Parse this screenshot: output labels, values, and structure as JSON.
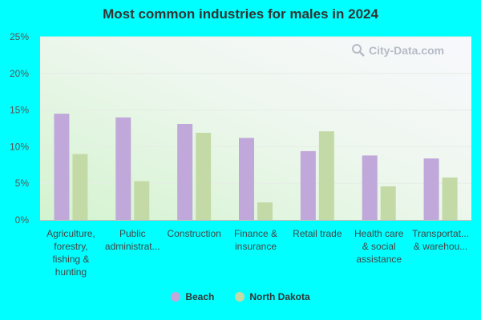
{
  "chart_data": {
    "type": "bar",
    "title": "Most common industries for males in 2024",
    "categories": [
      [
        "Agriculture,",
        "forestry,",
        "fishing &",
        "hunting"
      ],
      [
        "Public",
        "administrat..."
      ],
      [
        "Construction"
      ],
      [
        "Finance &",
        "insurance"
      ],
      [
        "Retail trade"
      ],
      [
        "Health care",
        "& social",
        "assistance"
      ],
      [
        "Transportat...",
        "& warehou..."
      ]
    ],
    "series": [
      {
        "name": "Beach",
        "color": "#C0A8DA",
        "values": [
          14.5,
          14.0,
          13.1,
          11.2,
          9.4,
          8.8,
          8.4
        ]
      },
      {
        "name": "North Dakota",
        "color": "#C4DAA6",
        "values": [
          9.0,
          5.3,
          11.9,
          2.4,
          12.1,
          4.6,
          5.8
        ]
      }
    ],
    "ylim": [
      0,
      25
    ],
    "yticks": [
      0,
      5,
      10,
      15,
      20,
      25
    ],
    "ytick_labels": [
      "0%",
      "5%",
      "10%",
      "15%",
      "20%",
      "25%"
    ],
    "grid": true,
    "legend_position": "bottom-center"
  },
  "watermark": {
    "text": "City-Data.com",
    "icon": "magnifier-icon"
  }
}
